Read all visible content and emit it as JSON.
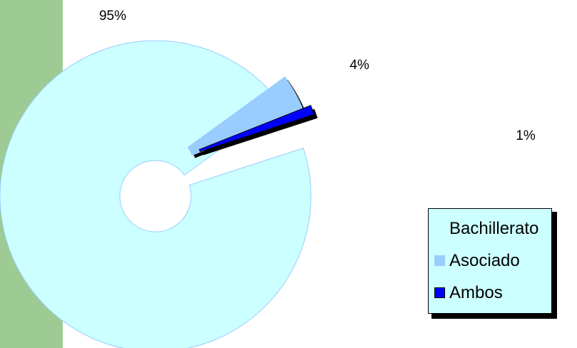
{
  "colors": {
    "band": "#9ecb93",
    "legend_bg": "#ccffff"
  },
  "chart_data": {
    "type": "pie",
    "variant": "exploded-doughnut",
    "slices": [
      {
        "label": "Bachillerato",
        "value": 95,
        "value_label": "95%",
        "color": "#ccffff",
        "edge": "#99ccff"
      },
      {
        "label": "Asociado",
        "value": 4,
        "value_label": "4%",
        "color": "#99ccff",
        "edge": "#99ccff"
      },
      {
        "label": "Ambos",
        "value": 1,
        "value_label": "1%",
        "color": "#0000ff",
        "edge": "#000000"
      }
    ],
    "legend": {
      "position": "right",
      "entries": [
        "Bachillerato",
        "Asociado",
        "Ambos"
      ]
    }
  }
}
